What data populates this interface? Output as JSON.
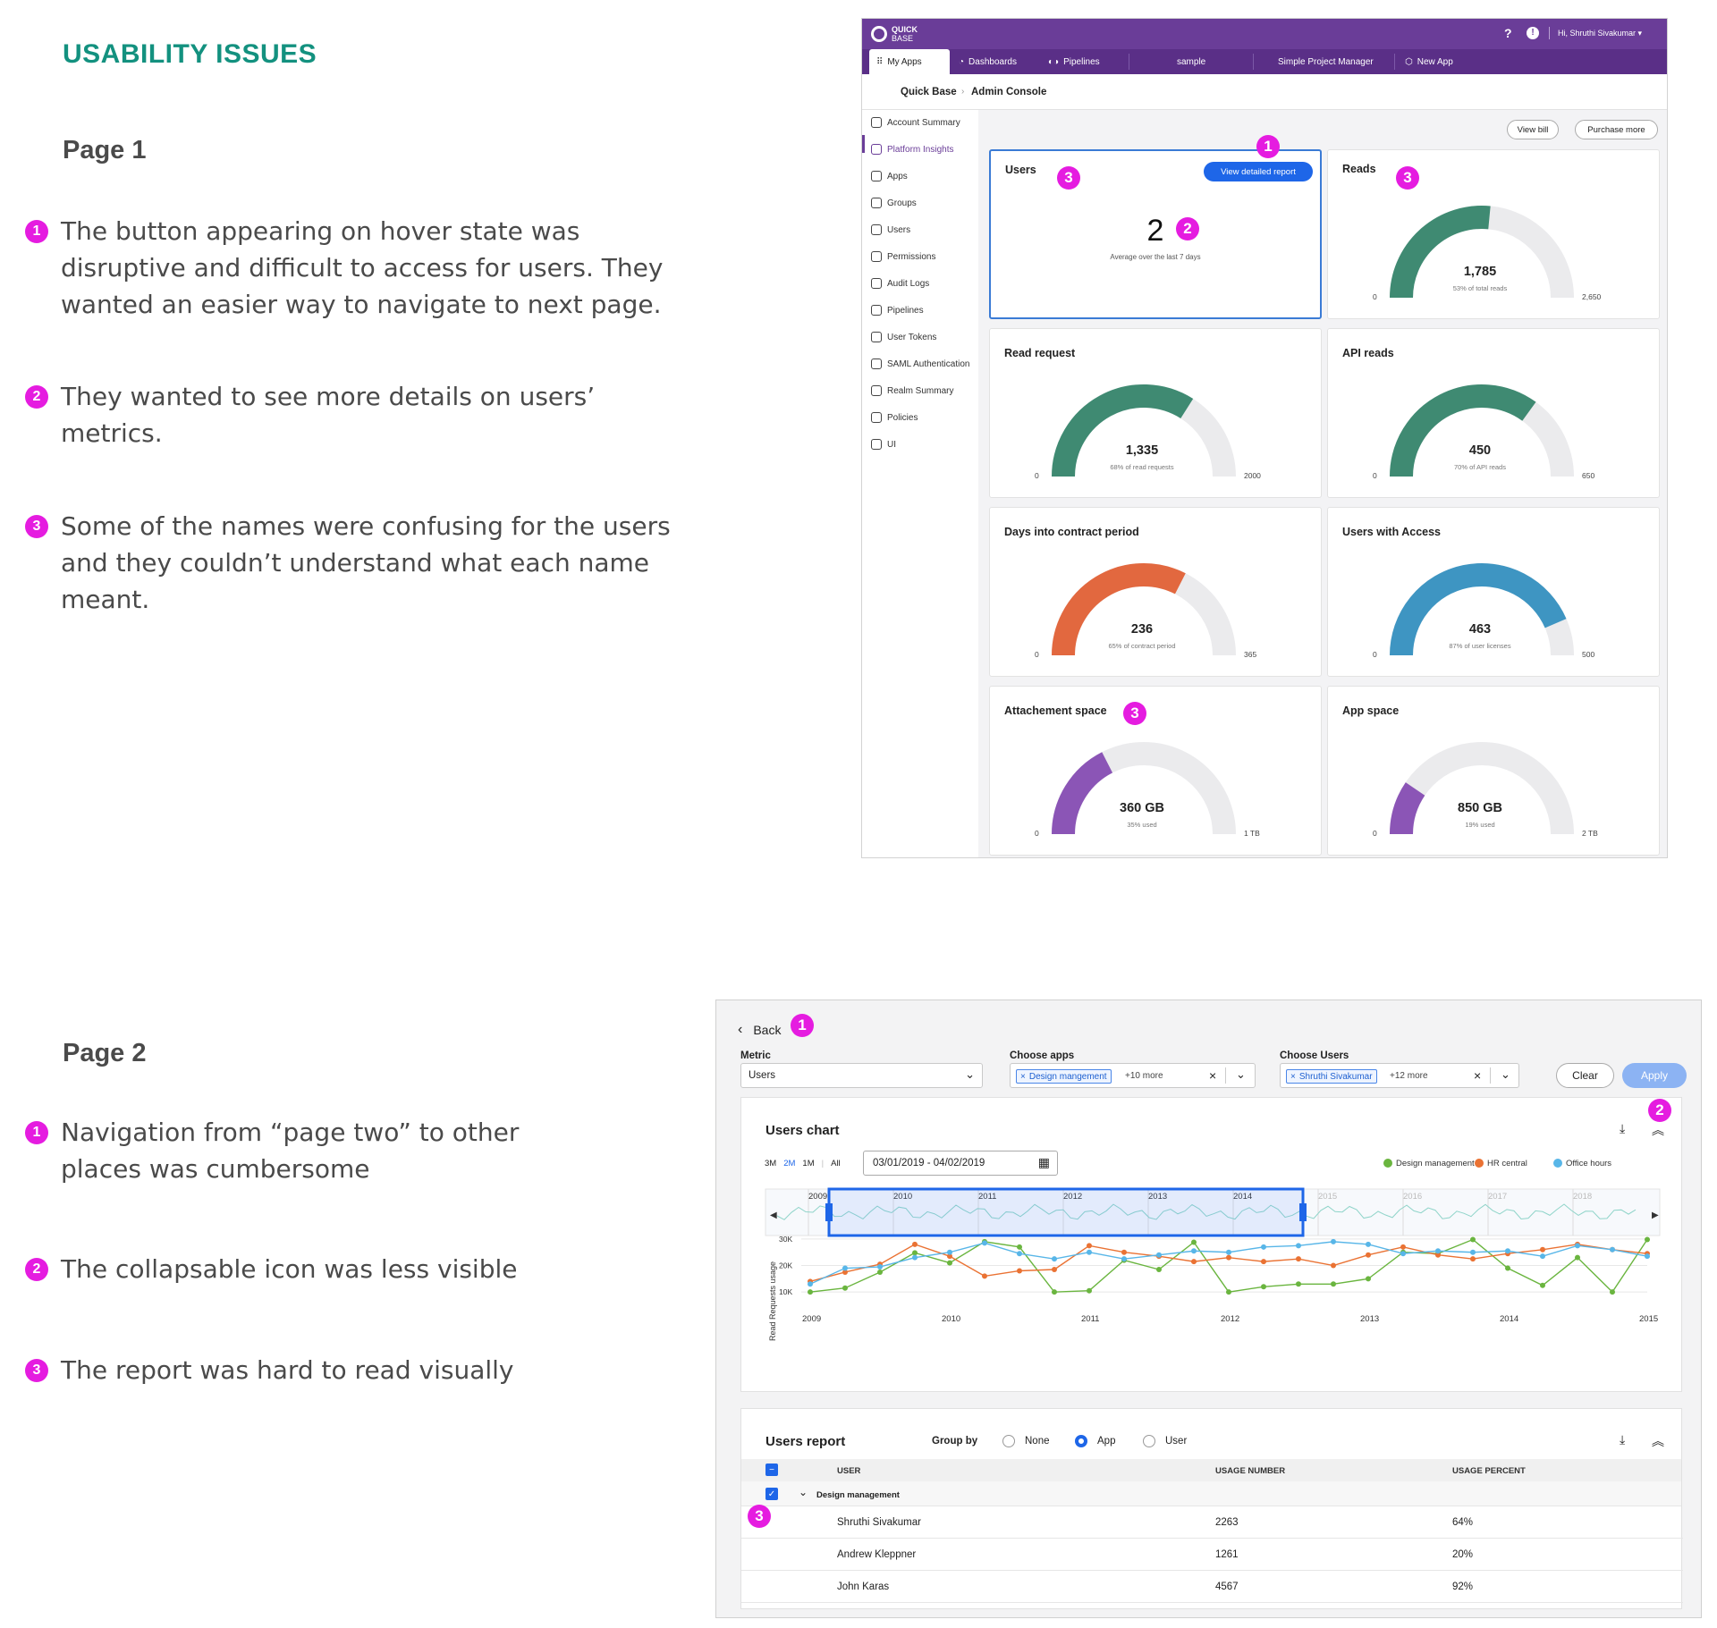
{
  "heading": "USABILITY ISSUES",
  "page1": {
    "label": "Page 1",
    "issues": [
      {
        "n": "1",
        "text": "The button appearing on hover state was disruptive and difficult to access for users. They wanted an easier way to navigate to next page."
      },
      {
        "n": "2",
        "text": "They wanted to see more details on users’ metrics."
      },
      {
        "n": "3",
        "text": "Some of the names were confusing for the users and they couldn’t understand what each name meant."
      }
    ]
  },
  "page2": {
    "label": "Page 2",
    "issues": [
      {
        "n": "1",
        "text": "Navigation from “page two” to other places was cumbersome"
      },
      {
        "n": "2",
        "text": "The collapsable icon was less visible"
      },
      {
        "n": "3",
        "text": "The report was hard to read visually"
      }
    ]
  },
  "screen1": {
    "brand_top": "QUICK",
    "brand_bottom": "BASE",
    "help": "?",
    "alert": "!",
    "greeting": "Hi, Shruthi Sivakumar",
    "tabs": [
      "My Apps",
      "Dashboards",
      "Pipelines",
      "sample",
      "Simple Project Manager",
      "New App"
    ],
    "breadcrumb": [
      "Quick Base",
      "Admin Console"
    ],
    "sidebar": [
      "Account Summary",
      "Platform Insights",
      "Apps",
      "Groups",
      "Users",
      "Permissions",
      "Audit Logs",
      "Pipelines",
      "User Tokens",
      "SAML Authentication",
      "Realm Summary",
      "Policies",
      "UI"
    ],
    "view_bill": "View bill",
    "purchase_more": "Purchase more",
    "users_card": {
      "title": "Users",
      "button": "View detailed report",
      "value": "2",
      "caption": "Average over the last 7 days"
    },
    "gauges": [
      {
        "title": "Reads",
        "value": "1,785",
        "caption": "53% of total reads",
        "min": "0",
        "max": "2,650",
        "fraction": 0.53,
        "color": "#3f8a72"
      },
      {
        "title": "Read request",
        "value": "1,335",
        "caption": "68% of read requests",
        "min": "0",
        "max": "2000",
        "fraction": 0.68,
        "color": "#3f8a72"
      },
      {
        "title": "API reads",
        "value": "450",
        "caption": "70% of API reads",
        "min": "0",
        "max": "650",
        "fraction": 0.7,
        "color": "#3f8a72"
      },
      {
        "title": "Days into contract period",
        "value": "236",
        "caption": "65% of contract period",
        "min": "0",
        "max": "365",
        "fraction": 0.65,
        "color": "#e2683f"
      },
      {
        "title": "Users with Access",
        "value": "463",
        "caption": "87% of user licenses",
        "min": "0",
        "max": "500",
        "fraction": 0.87,
        "color": "#3e95c2"
      },
      {
        "title": "Attachement space",
        "value": "360 GB",
        "caption": "35% used",
        "min": "0",
        "max": "1 TB",
        "fraction": 0.35,
        "color": "#8b55b6"
      },
      {
        "title": "App space",
        "value": "850 GB",
        "caption": "19% used",
        "min": "0",
        "max": "2 TB",
        "fraction": 0.19,
        "color": "#8b55b6"
      }
    ],
    "markers": [
      "1",
      "2",
      "3",
      "3",
      "3"
    ]
  },
  "screen2": {
    "back": "Back",
    "metric_label": "Metric",
    "metric_value": "Users",
    "apps_label": "Choose apps",
    "apps_chip": "Design mangement",
    "apps_more": "+10 more",
    "users_label": "Choose Users",
    "users_chip": "Shruthi Sivakumar",
    "users_more": "+12 more",
    "clear": "Clear",
    "apply": "Apply",
    "chart_title": "Users chart",
    "ranges": [
      "3M",
      "2M",
      "1M",
      "All"
    ],
    "date_range": "03/01/2019 - 04/02/2019",
    "markers": [
      "1",
      "2",
      "3"
    ],
    "report_title": "Users report",
    "group_by": "Group by",
    "group_options": [
      "None",
      "App",
      "User"
    ],
    "group_selected": "App",
    "columns": [
      "USER",
      "USAGE NUMBER",
      "USAGE PERCENT"
    ],
    "group_name": "Design management",
    "rows": [
      {
        "user": "Shruthi Sivakumar",
        "number": "2263",
        "percent": "64%"
      },
      {
        "user": "Andrew Kleppner",
        "number": "1261",
        "percent": "20%"
      },
      {
        "user": "John Karas",
        "number": "4567",
        "percent": "92%"
      }
    ]
  },
  "chart_data": {
    "type": "line",
    "title": "Users chart",
    "ylabel": "Read Requests usage",
    "ylim": [
      5000,
      32000
    ],
    "xticks": [
      "2009",
      "2010",
      "2011",
      "2012",
      "2013",
      "2014",
      "2015"
    ],
    "yticks": [
      "10K",
      "20K",
      "30K"
    ],
    "navigator_labels": [
      "2009",
      "2010",
      "2011",
      "2012",
      "2013",
      "2014",
      "2015",
      "2016",
      "2017",
      "2018"
    ],
    "legend_position": "top-right",
    "series": [
      {
        "name": "Design management",
        "color": "#6ab53f",
        "values": [
          10000,
          11500,
          17500,
          24800,
          21000,
          29000,
          27000,
          10000,
          10500,
          22000,
          18500,
          28800,
          10000,
          12000,
          13000,
          13000,
          15000,
          25000,
          24500,
          29800,
          19000,
          12500,
          23000,
          10000,
          29800
        ]
      },
      {
        "name": "HR central",
        "color": "#ea7233",
        "values": [
          14000,
          17500,
          20500,
          28000,
          23500,
          16000,
          18000,
          18500,
          27500,
          25000,
          23500,
          21500,
          23000,
          21500,
          22500,
          20000,
          24000,
          27000,
          24000,
          22500,
          24500,
          26000,
          28000,
          26000,
          24500
        ]
      },
      {
        "name": "Office hours",
        "color": "#58b6e8",
        "values": [
          13000,
          19000,
          19500,
          23000,
          25000,
          28500,
          24500,
          22500,
          25000,
          22500,
          24000,
          25500,
          25000,
          27000,
          27500,
          29000,
          28000,
          24500,
          25500,
          25000,
          25500,
          23500,
          27500,
          26000,
          23500
        ]
      }
    ]
  }
}
